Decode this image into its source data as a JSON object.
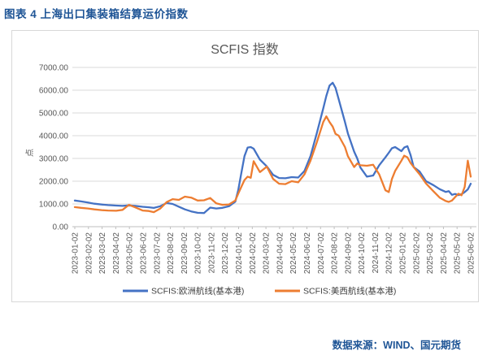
{
  "figure_title": "图表 4 上海出口集装箱结算运价指数",
  "source": "数据来源：WIND、国元期货",
  "colors": {
    "accent_text": "#1F5596",
    "europe_line": "#4472C4",
    "uswest_line": "#ED7D31",
    "gridline": "#D9D9D9",
    "axis_line": "#BFBFBF",
    "tick_label": "#595959",
    "chart_title": "#595959",
    "legend_text": "#404040"
  },
  "chart_data": {
    "type": "line",
    "title": "SCFIS 指数",
    "ylabel": "点",
    "ylim": [
      0,
      7000
    ],
    "y_tick_step": 1000,
    "y_tick_format": "two_decimals",
    "grid": true,
    "legend_position": "bottom",
    "x_tick_labels": [
      "2023-01-02",
      "2023-02-02",
      "2023-03-02",
      "2023-04-02",
      "2023-05-02",
      "2023-06-02",
      "2023-07-02",
      "2023-08-02",
      "2023-09-02",
      "2023-10-02",
      "2023-11-02",
      "2023-12-02",
      "2024-01-02",
      "2024-02-02",
      "2024-03-02",
      "2024-04-02",
      "2024-05-02",
      "2024-06-02",
      "2024-07-02",
      "2024-08-02",
      "2024-09-02",
      "2024-10-02",
      "2024-11-02",
      "2024-12-02",
      "2025-01-02",
      "2025-02-02",
      "2025-03-02",
      "2025-04-02",
      "2025-05-02",
      "2025-06-02"
    ],
    "x": [
      "2023-01-02",
      "2023-01-16",
      "2023-02-01",
      "2023-02-15",
      "2023-03-01",
      "2023-03-15",
      "2023-04-03",
      "2023-04-17",
      "2023-05-01",
      "2023-05-15",
      "2023-06-01",
      "2023-06-15",
      "2023-06-26",
      "2023-07-10",
      "2023-07-24",
      "2023-08-07",
      "2023-08-21",
      "2023-09-04",
      "2023-09-18",
      "2023-10-02",
      "2023-10-16",
      "2023-10-30",
      "2023-11-13",
      "2023-11-27",
      "2023-12-11",
      "2023-12-25",
      "2024-01-01",
      "2024-01-08",
      "2024-01-15",
      "2024-01-22",
      "2024-01-29",
      "2024-02-05",
      "2024-02-19",
      "2024-03-04",
      "2024-03-18",
      "2024-04-01",
      "2024-04-15",
      "2024-04-29",
      "2024-05-13",
      "2024-05-27",
      "2024-06-10",
      "2024-06-24",
      "2024-07-08",
      "2024-07-15",
      "2024-07-22",
      "2024-07-29",
      "2024-08-05",
      "2024-08-12",
      "2024-08-26",
      "2024-09-02",
      "2024-09-16",
      "2024-09-23",
      "2024-09-30",
      "2024-10-14",
      "2024-10-28",
      "2024-11-11",
      "2024-11-25",
      "2024-12-02",
      "2024-12-09",
      "2024-12-16",
      "2024-12-30",
      "2025-01-06",
      "2025-01-13",
      "2025-01-20",
      "2025-01-27",
      "2025-02-10",
      "2025-02-24",
      "2025-03-10",
      "2025-03-24",
      "2025-04-07",
      "2025-04-14",
      "2025-04-21",
      "2025-04-28",
      "2025-05-05",
      "2025-05-12",
      "2025-05-19",
      "2025-05-26",
      "2025-06-02"
    ],
    "series": [
      {
        "name": "SCFIS:欧洲航线(基本港)",
        "color": "#4472C4",
        "values": [
          1150,
          1110,
          1060,
          1010,
          975,
          950,
          930,
          915,
          935,
          915,
          875,
          855,
          825,
          900,
          1040,
          1000,
          880,
          760,
          670,
          610,
          600,
          840,
          800,
          830,
          900,
          1100,
          1600,
          2350,
          3100,
          3480,
          3500,
          3430,
          2950,
          2650,
          2280,
          2140,
          2130,
          2180,
          2160,
          2450,
          3100,
          4100,
          5200,
          5750,
          6200,
          6330,
          6100,
          5600,
          4600,
          4100,
          3300,
          3000,
          2600,
          2200,
          2250,
          2700,
          3050,
          3250,
          3450,
          3500,
          3320,
          3480,
          3540,
          3150,
          2620,
          2420,
          2000,
          1830,
          1650,
          1530,
          1560,
          1400,
          1440,
          1390,
          1430,
          1520,
          1640,
          1890
        ]
      },
      {
        "name": "SCFIS:美西航线(基本港)",
        "color": "#ED7D31",
        "values": [
          860,
          830,
          800,
          760,
          730,
          710,
          700,
          740,
          960,
          850,
          710,
          690,
          640,
          800,
          1080,
          1210,
          1180,
          1320,
          1280,
          1150,
          1160,
          1260,
          1030,
          960,
          980,
          1150,
          1450,
          1750,
          2050,
          2200,
          2150,
          2880,
          2400,
          2640,
          2100,
          1890,
          1870,
          2000,
          1950,
          2300,
          2900,
          3700,
          4600,
          4850,
          4600,
          4400,
          4080,
          4000,
          3500,
          3100,
          2620,
          2780,
          2700,
          2680,
          2720,
          2300,
          1600,
          1520,
          2100,
          2450,
          2900,
          3120,
          3050,
          2800,
          2620,
          2300,
          1900,
          1560,
          1280,
          1130,
          1090,
          1150,
          1300,
          1450,
          1380,
          1750,
          2900,
          2200
        ]
      }
    ]
  }
}
